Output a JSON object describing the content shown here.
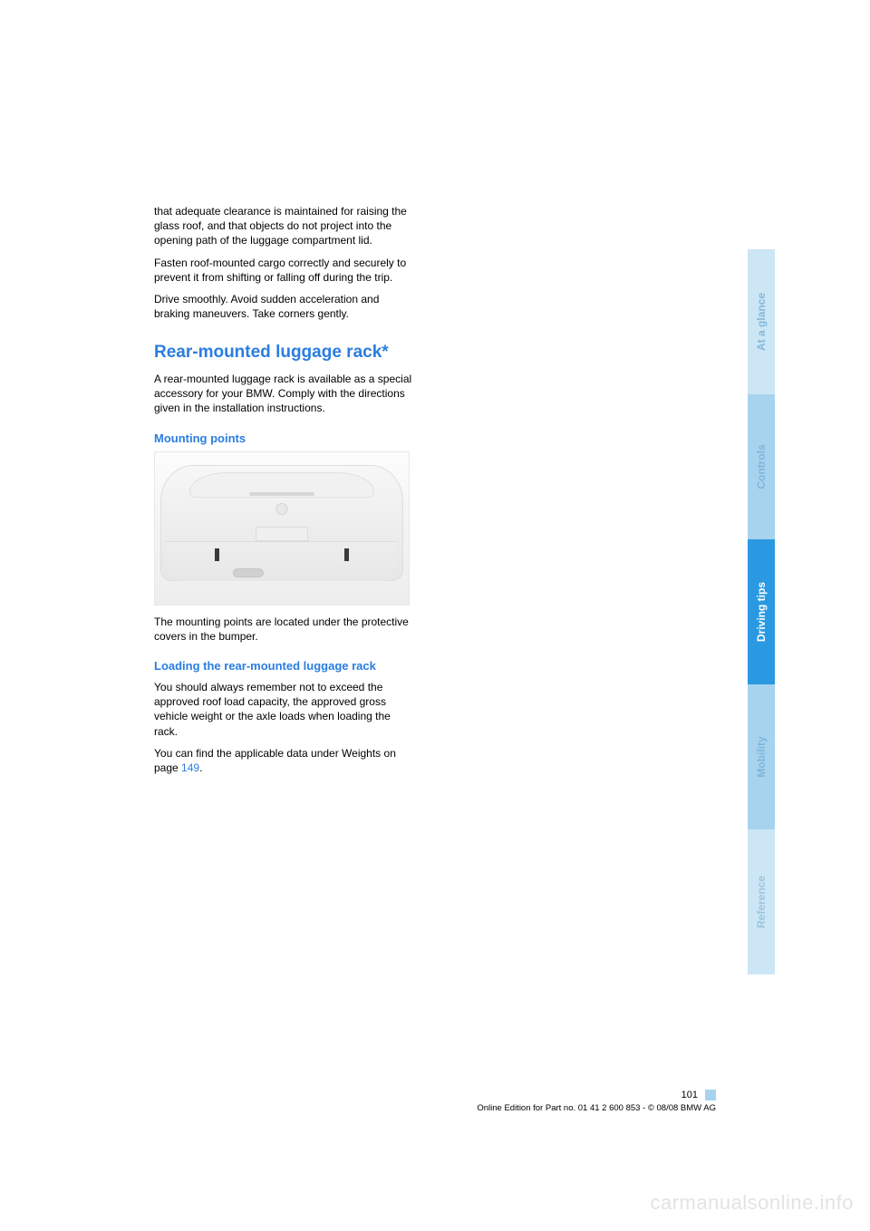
{
  "body": {
    "intro_p1": "that adequate clearance is maintained for rais­ing the glass roof, and that objects do not project into the opening path of the luggage compartment lid.",
    "intro_p2": "Fasten roof-mounted cargo correctly and securely to prevent it from shifting or falling off during the trip.",
    "intro_p3": "Drive smoothly. Avoid sudden acceleration and braking maneuvers. Take corners gently.",
    "section_heading": "Rear-mounted luggage rack*",
    "section_p1": "A rear-mounted luggage rack is available as a special accessory for your BMW. Comply with the directions given in the installation instruc­tions.",
    "sub_mounting": "Mounting points",
    "fig_caption": "The mounting points are located under the pro­tective covers in the bumper.",
    "sub_loading": "Loading the rear-mounted luggage rack",
    "loading_p1": "You should always remember not to exceed the approved roof load capacity, the approved gross vehicle weight or the axle loads when loading the rack.",
    "loading_p2_a": "You can find the applicable data under Weights on page ",
    "loading_p2_link": "149",
    "loading_p2_b": "."
  },
  "footer": {
    "page_number": "101",
    "line": "Online Edition for Part no. 01 41 2 600 853 - © 08/08 BMW AG"
  },
  "tabs": {
    "glance": "At a glance",
    "controls": "Controls",
    "driving": "Driving tips",
    "mobility": "Mobility",
    "reference": "Reference"
  },
  "watermark": "carmanualsonline.info",
  "colors": {
    "heading_blue": "#2a7de1",
    "tab_active_bg": "#2a99e2",
    "tab_light_bg": "#cce6f5",
    "tab_mid_bg": "#a7d3ef"
  }
}
